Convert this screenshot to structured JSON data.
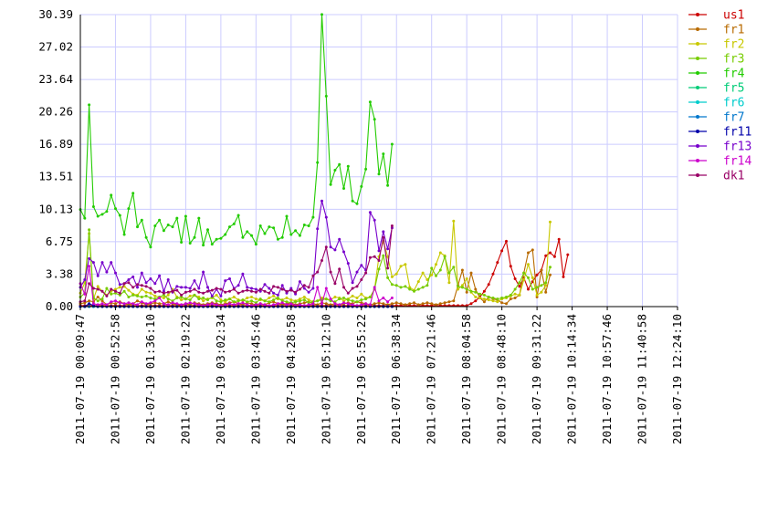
{
  "chart_data": {
    "type": "line",
    "grid": true,
    "legend_placement": "right",
    "title": "",
    "xlabel": "",
    "ylabel": "",
    "ylim": [
      0,
      30.39
    ],
    "y_ticks": [
      "0.00",
      "3.38",
      "6.75",
      "10.13",
      "13.51",
      "16.89",
      "20.26",
      "23.64",
      "27.02",
      "30.39"
    ],
    "x_ticks": [
      "2011-07-19 00:09:47",
      "2011-07-19 00:52:58",
      "2011-07-19 01:36:10",
      "2011-07-19 02:19:22",
      "2011-07-19 03:02:34",
      "2011-07-19 03:45:46",
      "2011-07-19 04:28:58",
      "2011-07-19 05:12:10",
      "2011-07-19 05:55:22",
      "2011-07-19 06:38:34",
      "2011-07-19 07:21:46",
      "2011-07-19 08:04:58",
      "2011-07-19 08:48:10",
      "2011-07-19 09:31:22",
      "2011-07-19 10:14:34",
      "2011-07-19 10:57:46",
      "2011-07-19 11:40:58",
      "2011-07-19 12:24:10"
    ],
    "sample_interval_minutes": 5.4,
    "series": [
      {
        "name": "us1",
        "color": "#cc0000",
        "values": [
          0.1,
          0.1,
          0.1,
          0.1,
          0.1,
          0.1,
          0.1,
          0.1,
          0.1,
          0.1,
          0.1,
          0.1,
          0.1,
          0.1,
          0.1,
          0.1,
          0.1,
          0.1,
          0.1,
          0.1,
          0.1,
          0.1,
          0.1,
          0.1,
          0.1,
          0.1,
          0.1,
          0.1,
          0.1,
          0.1,
          0.1,
          0.1,
          0.1,
          0.1,
          0.1,
          0.1,
          0.1,
          0.1,
          0.1,
          0.1,
          0.1,
          0.1,
          0.1,
          0.1,
          0.1,
          0.1,
          0.1,
          0.1,
          0.1,
          0.1,
          0.1,
          0.1,
          0.1,
          0.1,
          0.1,
          0.1,
          0.1,
          0.1,
          0.1,
          0.1,
          0.1,
          0.1,
          0.1,
          0.1,
          0.1,
          0.1,
          0.1,
          0.1,
          0.1,
          0.1,
          0.1,
          0.1,
          0.1,
          0.1,
          0.1,
          0.1,
          0.1,
          0.1,
          0.1,
          0.1,
          0.1,
          0.1,
          0.1,
          0.1,
          0.1,
          0.1,
          0.1,
          0.1,
          0.1,
          0.3,
          0.6,
          1.0,
          1.6,
          2.3,
          3.4,
          4.6,
          5.8,
          6.8,
          4.2,
          2.9,
          2.1,
          3.0,
          1.8,
          2.6,
          3.3,
          3.8,
          5.3,
          5.6,
          5.2,
          7.0,
          3.1,
          5.4
        ]
      },
      {
        "name": "fr1",
        "color": "#b86a00",
        "values": [
          0.3,
          0.4,
          0.6,
          0.5,
          1.0,
          0.6,
          0.2,
          0.4,
          0.3,
          0.5,
          0.3,
          0.2,
          0.3,
          0.6,
          0.4,
          0.2,
          0.3,
          0.4,
          0.3,
          0.3,
          0.5,
          0.3,
          0.2,
          0.2,
          0.3,
          0.2,
          0.4,
          0.3,
          0.2,
          0.3,
          0.4,
          0.3,
          0.2,
          0.3,
          0.4,
          0.5,
          0.3,
          0.2,
          0.4,
          0.3,
          0.2,
          0.3,
          0.2,
          0.4,
          0.5,
          0.3,
          0.2,
          0.3,
          0.4,
          0.2,
          0.3,
          0.4,
          0.5,
          0.3,
          0.2,
          0.4,
          0.3,
          0.2,
          0.3,
          0.2,
          0.3,
          0.4,
          0.3,
          0.5,
          0.4,
          0.3,
          0.2,
          0.3,
          0.4,
          0.3,
          0.2,
          0.3,
          0.4,
          0.3,
          0.2,
          0.3,
          0.4,
          0.2,
          0.3,
          0.4,
          0.3,
          0.2,
          0.3,
          0.4,
          0.5,
          0.6,
          2.2,
          3.8,
          1.5,
          3.5,
          1.8,
          0.9,
          0.5,
          1.0,
          0.8,
          0.7,
          0.4,
          0.3,
          0.8,
          0.9,
          1.2,
          3.5,
          5.6,
          5.9,
          1.0,
          3.8,
          1.5,
          3.3
        ]
      },
      {
        "name": "fr2",
        "color": "#c8c800",
        "values": [
          1.4,
          2.5,
          7.6,
          0.8,
          2.1,
          1.6,
          1.2,
          1.6,
          1.8,
          2.0,
          2.1,
          1.7,
          1.3,
          1.2,
          1.8,
          1.5,
          1.4,
          1.1,
          1.0,
          0.9,
          1.2,
          1.8,
          1.0,
          0.7,
          0.8,
          1.1,
          1.2,
          1.0,
          0.6,
          0.8,
          0.9,
          1.2,
          0.7,
          0.5,
          0.8,
          1.0,
          0.7,
          0.6,
          0.9,
          1.0,
          0.8,
          0.7,
          0.6,
          0.9,
          1.1,
          0.8,
          0.7,
          0.9,
          0.7,
          0.6,
          0.8,
          1.0,
          0.7,
          0.5,
          0.6,
          0.9,
          0.8,
          0.7,
          1.0,
          0.9,
          0.6,
          0.8,
          1.1,
          0.9,
          1.3,
          0.9,
          1.0,
          1.8,
          5.2,
          6.8,
          5.2,
          3.1,
          3.4,
          4.2,
          4.4,
          2.0,
          1.7,
          2.6,
          3.5,
          2.8,
          3.3,
          4.4,
          5.6,
          5.3,
          2.5,
          8.9,
          1.8,
          2.2,
          2.9,
          1.5,
          1.0,
          0.9,
          0.8,
          0.7,
          0.6,
          0.5,
          0.8,
          0.9,
          1.1,
          1.3,
          1.2,
          2.8,
          4.4,
          3.0,
          1.2,
          1.5,
          2.2,
          8.8
        ]
      },
      {
        "name": "fr3",
        "color": "#77cc00",
        "values": [
          1.0,
          1.4,
          8.0,
          0.9,
          0.6,
          0.8,
          1.9,
          1.3,
          1.4,
          1.2,
          1.6,
          1.0,
          1.2,
          1.1,
          1.0,
          1.1,
          0.9,
          0.8,
          1.0,
          1.2,
          0.8,
          0.6,
          0.9,
          1.0,
          0.8,
          0.7,
          1.2,
          0.8,
          0.9,
          0.7,
          1.0,
          0.6,
          0.5,
          0.7,
          0.8,
          0.5,
          0.6,
          0.7,
          0.5,
          0.6,
          0.4,
          0.8,
          0.6,
          0.5,
          0.7,
          0.9,
          0.6,
          0.5,
          0.4,
          0.5,
          0.6,
          0.7,
          0.4,
          0.5,
          0.6,
          0.7,
          0.8,
          0.6,
          0.5,
          0.8,
          0.9,
          0.7,
          0.6,
          0.5,
          0.7,
          0.8,
          1.0,
          1.8,
          3.9,
          5.3,
          3.0,
          2.3,
          2.2,
          2.0,
          2.1,
          1.8,
          1.6,
          1.8,
          2.0,
          2.2,
          4.0,
          3.2,
          3.8,
          5.2,
          3.5,
          4.1,
          2.1,
          2.0,
          1.8,
          1.6,
          1.5,
          1.3,
          1.2,
          1.0,
          0.9,
          0.8,
          0.9,
          1.0,
          1.2,
          1.8,
          2.5,
          3.5,
          3.0,
          1.8,
          2.0,
          2.2,
          2.5,
          4.1
        ]
      },
      {
        "name": "fr4",
        "color": "#22cc00",
        "values": [
          10.1,
          9.2,
          21.0,
          10.4,
          9.4,
          9.6,
          9.9,
          11.6,
          10.2,
          9.5,
          7.5,
          10.2,
          11.8,
          8.3,
          9.0,
          7.2,
          6.2,
          8.4,
          9.0,
          7.9,
          8.5,
          8.3,
          9.2,
          6.7,
          9.4,
          6.6,
          7.2,
          9.2,
          6.4,
          8.0,
          6.5,
          7.0,
          7.1,
          7.5,
          8.3,
          8.6,
          9.5,
          7.2,
          7.8,
          7.4,
          6.5,
          8.4,
          7.6,
          8.3,
          8.2,
          7.0,
          7.2,
          9.4,
          7.5,
          7.9,
          7.4,
          8.5,
          8.4,
          9.3,
          15.0,
          30.4,
          21.9,
          12.7,
          14.2,
          14.8,
          12.3,
          14.6,
          11.0,
          10.7,
          12.5,
          14.3,
          21.3,
          19.5,
          13.8,
          15.9,
          12.6,
          16.9
        ]
      },
      {
        "name": "fr5",
        "color": "#00cc77",
        "values": [
          0.0,
          0.0,
          0.0,
          0.0,
          0.0,
          0.0,
          0.0,
          0.0,
          0.0,
          0.0,
          0.0,
          0.0,
          0.0,
          0.0,
          0.0,
          0.0,
          0.0,
          0.0,
          0.0,
          0.0,
          0.0,
          0.0,
          0.0,
          0.0,
          0.0,
          0.0,
          0.0,
          0.0,
          0.0,
          0.0,
          0.0,
          0.0,
          0.0,
          0.0,
          0.0,
          0.0,
          0.0,
          0.0,
          0.0,
          0.0,
          0.0,
          0.0,
          0.0,
          0.0,
          0.0,
          0.0,
          0.0,
          0.0,
          0.0,
          0.0,
          0.0,
          0.0,
          0.0,
          0.0,
          0.0,
          0.0,
          0.0,
          0.0,
          0.0,
          0.0,
          0.0,
          0.0,
          0.0,
          0.0,
          0.0,
          0.0,
          0.0,
          0.0,
          0.0,
          0.0,
          0.0,
          0.0
        ]
      },
      {
        "name": "fr6",
        "color": "#00cccc",
        "values": [
          0.0,
          0.0,
          0.0,
          0.0,
          0.0,
          0.0,
          0.0,
          0.0,
          0.0,
          0.0,
          0.0,
          0.0,
          0.0,
          0.0,
          0.0,
          0.0,
          0.0,
          0.0,
          0.0,
          0.0,
          0.0,
          0.0,
          0.0,
          0.0,
          0.0,
          0.0,
          0.0,
          0.0,
          0.0,
          0.0,
          0.0,
          0.0,
          0.0,
          0.0,
          0.0,
          0.0,
          0.0,
          0.0,
          0.0,
          0.0,
          0.0,
          0.0,
          0.0,
          0.0,
          0.0,
          0.0,
          0.0,
          0.0,
          0.0,
          0.0,
          0.0,
          0.0,
          0.0,
          0.0,
          0.0,
          0.0,
          0.0,
          0.0,
          0.0,
          0.0,
          0.0,
          0.0,
          0.0,
          0.0,
          0.0,
          0.0,
          0.0,
          0.0,
          0.0,
          0.0,
          0.0,
          0.0
        ]
      },
      {
        "name": "fr7",
        "color": "#0077cc",
        "values": [
          0.0,
          0.0,
          0.0,
          0.0,
          0.0,
          0.0,
          0.0,
          0.0,
          0.0,
          0.0,
          0.0,
          0.0,
          0.0,
          0.0,
          0.0,
          0.0,
          0.0,
          0.0,
          0.0,
          0.0,
          0.0,
          0.0,
          0.0,
          0.0,
          0.0,
          0.0,
          0.0,
          0.0,
          0.0,
          0.0,
          0.0,
          0.0,
          0.0,
          0.0,
          0.0,
          0.0,
          0.0,
          0.0,
          0.0,
          0.0,
          0.0,
          0.0,
          0.0,
          0.0,
          0.0,
          0.0,
          0.0,
          0.0,
          0.0,
          0.0,
          0.0,
          0.0,
          0.0,
          0.0,
          0.0,
          0.0,
          0.0,
          0.0,
          0.0,
          0.0,
          0.0,
          0.0,
          0.0,
          0.0,
          0.0,
          0.0,
          0.0,
          0.0,
          0.0,
          0.0,
          0.0,
          0.0
        ]
      },
      {
        "name": "fr11",
        "color": "#0000aa",
        "values": [
          0.0,
          0.0,
          0.3,
          0.1,
          0.0,
          0.0,
          0.0,
          0.0,
          0.0,
          0.0,
          0.0,
          0.0,
          0.0,
          0.0,
          0.0,
          0.0,
          0.0,
          0.0,
          0.0,
          0.0,
          0.0,
          0.0,
          0.0,
          0.0,
          0.0,
          0.0,
          0.0,
          0.0,
          0.0,
          0.0,
          0.0,
          0.0,
          0.0,
          0.0,
          0.0,
          0.0,
          0.0,
          0.0,
          0.0,
          0.0,
          0.0,
          0.0,
          0.0,
          0.0,
          0.0,
          0.0,
          0.0,
          0.0,
          0.0,
          0.0,
          0.0,
          0.0,
          0.0,
          0.0,
          0.0,
          0.0,
          0.0,
          0.0,
          0.0,
          0.0,
          0.0,
          0.0,
          0.0,
          0.0,
          0.0,
          0.0,
          0.0,
          0.0,
          0.0,
          0.0,
          0.0,
          0.0
        ]
      },
      {
        "name": "fr13",
        "color": "#7700cc",
        "values": [
          2.0,
          2.8,
          5.0,
          4.6,
          3.2,
          4.6,
          3.6,
          4.6,
          3.5,
          2.3,
          2.4,
          2.8,
          3.1,
          2.0,
          3.5,
          2.5,
          2.9,
          2.4,
          3.2,
          1.6,
          2.8,
          1.5,
          2.1,
          2.0,
          2.0,
          1.9,
          2.7,
          1.9,
          3.6,
          2.0,
          1.1,
          1.8,
          1.1,
          2.7,
          2.9,
          1.9,
          2.2,
          3.4,
          2.0,
          1.9,
          1.8,
          1.6,
          2.3,
          1.9,
          1.4,
          1.2,
          2.2,
          1.4,
          1.9,
          1.3,
          2.6,
          1.9,
          1.5,
          1.9,
          8.1,
          11.0,
          9.3,
          6.2,
          5.9,
          7.0,
          5.7,
          4.5,
          2.5,
          3.6,
          4.3,
          3.8,
          9.8,
          9.0,
          5.8,
          7.8,
          6.0,
          8.2
        ]
      },
      {
        "name": "fr14",
        "color": "#cc00cc",
        "values": [
          2.4,
          1.3,
          4.2,
          0.3,
          0.2,
          0.3,
          0.2,
          0.5,
          0.6,
          0.4,
          0.3,
          0.4,
          0.3,
          0.2,
          0.5,
          0.3,
          0.4,
          0.6,
          0.9,
          0.3,
          0.2,
          0.4,
          0.3,
          0.2,
          0.3,
          0.4,
          0.3,
          0.2,
          0.1,
          0.2,
          0.3,
          0.2,
          0.1,
          0.2,
          0.3,
          0.2,
          0.3,
          0.4,
          0.2,
          0.1,
          0.2,
          0.3,
          0.2,
          0.1,
          0.2,
          0.3,
          0.4,
          0.2,
          0.3,
          0.1,
          0.2,
          0.1,
          0.2,
          0.3,
          2.0,
          0.3,
          1.9,
          0.8,
          0.3,
          0.2,
          0.4,
          0.3,
          0.2,
          0.1,
          0.2,
          0.3,
          0.2,
          2.0,
          0.6,
          0.9,
          0.5,
          0.9
        ]
      },
      {
        "name": "dk1",
        "color": "#990066",
        "values": [
          0.5,
          0.6,
          2.4,
          1.9,
          1.8,
          1.6,
          1.1,
          1.8,
          1.6,
          1.4,
          2.4,
          2.5,
          2.0,
          2.3,
          2.2,
          2.1,
          1.9,
          1.5,
          1.6,
          1.4,
          1.5,
          1.6,
          1.7,
          1.2,
          1.5,
          1.6,
          1.8,
          1.5,
          1.4,
          1.6,
          1.7,
          1.9,
          1.8,
          1.5,
          1.6,
          1.8,
          1.4,
          1.6,
          1.7,
          1.6,
          1.5,
          1.8,
          1.6,
          1.4,
          2.1,
          2.0,
          1.8,
          1.6,
          1.7,
          1.5,
          1.8,
          2.2,
          2.0,
          3.2,
          3.6,
          4.8,
          6.2,
          3.6,
          2.4,
          3.9,
          2.0,
          1.4,
          1.9,
          2.1,
          2.8,
          3.5,
          5.1,
          5.2,
          4.8,
          7.2,
          4.0,
          8.4
        ]
      }
    ]
  }
}
